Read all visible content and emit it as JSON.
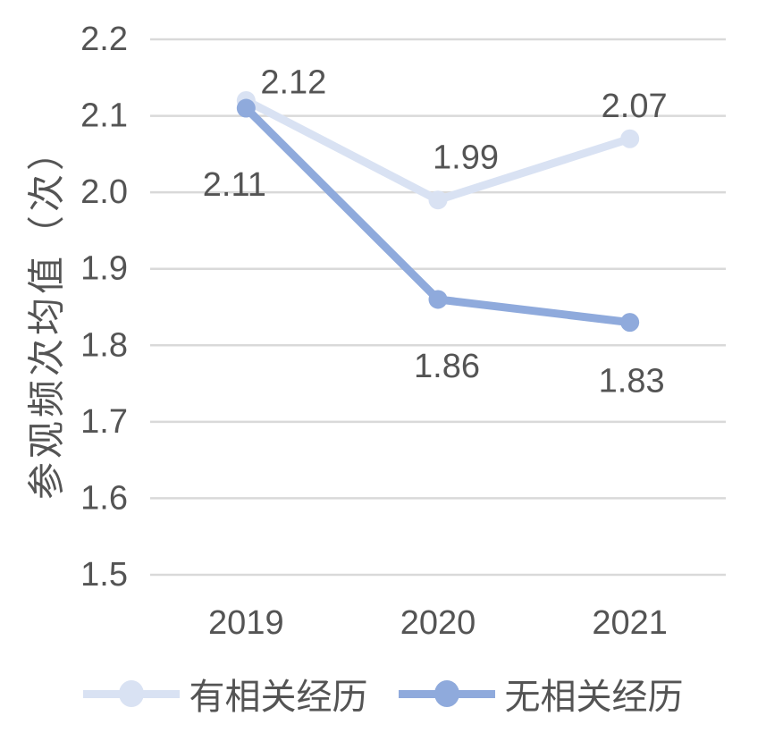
{
  "chart_data": {
    "type": "line",
    "title": "",
    "categories": [
      "2019",
      "2020",
      "2021"
    ],
    "series": [
      {
        "name": "有相关经历",
        "color": "#d9e2f3",
        "values": [
          2.12,
          1.99,
          2.07
        ],
        "data_labels": [
          "2.12",
          "1.99",
          "2.07"
        ],
        "label_offsets": [
          [
            53,
            -20
          ],
          [
            31,
            -47
          ],
          [
            5,
            -36
          ]
        ]
      },
      {
        "name": "无相关经历",
        "color": "#8faadc",
        "values": [
          2.11,
          1.86,
          1.83
        ],
        "data_labels": [
          "2.11",
          "1.86",
          "1.83"
        ],
        "label_offsets": [
          [
            -13,
            86
          ],
          [
            10,
            75
          ],
          [
            2,
            66
          ]
        ]
      }
    ],
    "xlabel": "",
    "ylabel": "参观频次均值（次）",
    "ylim": [
      1.5,
      2.2
    ],
    "ytick_labels": [
      "2.2",
      "2.1",
      "2.0",
      "1.9",
      "1.8",
      "1.7",
      "1.6",
      "1.5"
    ],
    "ytick_values": [
      2.2,
      2.1,
      2.0,
      1.9,
      1.8,
      1.7,
      1.6,
      1.5
    ],
    "grid": true,
    "legend_position": "bottom"
  },
  "colors": {
    "background": "#ffffff",
    "text": "#545454",
    "gridline": "#d9d9d9",
    "series_light": "#d9e2f3",
    "series_dark": "#8faadc"
  }
}
